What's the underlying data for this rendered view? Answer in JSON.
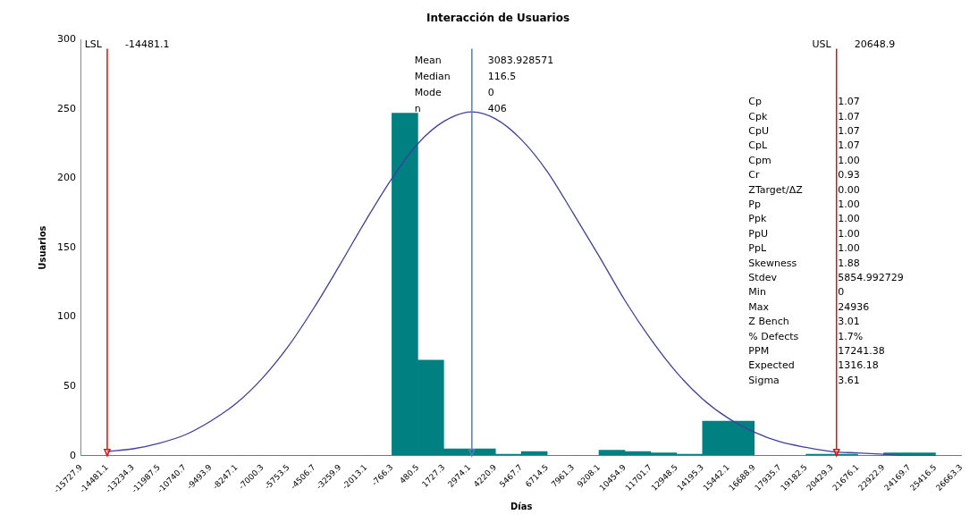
{
  "chart_data": {
    "type": "histogram",
    "title": "Interacción de Usuarios",
    "xlabel": "Días",
    "ylabel": "Usuarios",
    "bins": [
      -15727.9,
      -14481.1,
      -13234.3,
      -11987.5,
      -10740.7,
      -9493.9,
      -8247.1,
      -7000.3,
      -5753.5,
      -4506.7,
      -3259.9,
      -2013.1,
      -766.3,
      480.5,
      1727.3,
      2974.1,
      4220.9,
      5467.7,
      6714.5,
      7961.3,
      9208.1,
      10454.9,
      11701.7,
      12948.5,
      14195.3,
      15442.1,
      16688.9,
      17935.7,
      19182.5,
      20429.3,
      21676.1,
      22922.9,
      24169.7,
      25416.5,
      26663.3
    ],
    "values": [
      0,
      0,
      0,
      0,
      0,
      0,
      0,
      0,
      0,
      0,
      0,
      0,
      247,
      69,
      5,
      5,
      1,
      3,
      0,
      0,
      4,
      3,
      2,
      1,
      25,
      25,
      0,
      0,
      1,
      1,
      0,
      2,
      2,
      0
    ],
    "color": "#008080",
    "series": [
      {
        "type": "line",
        "color": "#3f3f9f",
        "x": [
          -14481.1,
          -13234.3,
          -11987.5,
          -10740.7,
          -9493.9,
          -8247.1,
          -7000.3,
          -5753.5,
          -4506.7,
          -3259.9,
          -2013.1,
          -766.3,
          480.5,
          1727.3,
          3083.9,
          4220.9,
          5467.7,
          6714.5,
          7961.3,
          9208.1,
          10454.9,
          11701.7,
          12948.5,
          14195.3,
          15442.1,
          16688.9,
          17935.7,
          19182.5,
          20429.3,
          21676.1,
          22922.9,
          24169.7,
          25416.5
        ],
        "values": [
          3,
          5,
          9,
          15,
          25,
          38,
          56,
          79,
          107,
          138,
          170,
          200,
          225,
          241,
          248,
          243,
          228,
          205,
          175,
          144,
          112,
          84,
          60,
          41,
          27,
          17,
          10,
          6,
          3,
          2,
          1,
          0,
          0
        ]
      }
    ],
    "xlim": [
      -15727.9,
      26663.3
    ],
    "xticks": [
      -15727.9,
      -14481.1,
      -13234.3,
      -11987.5,
      -10740.7,
      -9493.9,
      -8247.1,
      -7000.3,
      -5753.5,
      -4506.7,
      -3259.9,
      -2013.1,
      -766.3,
      480.5,
      1727.3,
      2974.1,
      4220.9,
      5467.7,
      6714.5,
      7961.3,
      9208.1,
      10454.9,
      11701.7,
      12948.5,
      14195.3,
      15442.1,
      16688.9,
      17935.7,
      19182.5,
      20429.3,
      21676.1,
      22922.9,
      24169.7,
      25416.5,
      26663.3
    ],
    "ylim": [
      0,
      300
    ],
    "yticks": [
      0,
      50,
      100,
      150,
      200,
      250,
      300
    ],
    "ref_lines": [
      {
        "axis": "x",
        "value": -14481.1,
        "label": "LSL",
        "color": "#ff0000"
      },
      {
        "axis": "x",
        "value": 20648.9,
        "label": "USL",
        "color": "#ff0000"
      },
      {
        "axis": "x",
        "value": 3083.928571,
        "color": "#4f81bd"
      }
    ],
    "annotations": [
      "-14481.1",
      "20648.9",
      "Mean\t3083.928571",
      "Median\t116.5",
      "Mode\t0",
      "n\t406",
      "Cp\t1.07",
      "Cpk\t1.07",
      "CpU\t1.07",
      "CpL\t1.07",
      "Cpm\t1.00",
      "Cr\t0.93",
      "ZTarget/ΔZ\t0.00",
      "Pp\t1.00",
      "Ppk\t1.00",
      "PpU\t1.00",
      "PpL\t1.00",
      "Skewness\t1.88",
      "Stdev\t5854.992729",
      "Min\t0",
      "Max\t24936",
      "Z Bench\t3.01",
      "% Defects\t1.7%",
      "PPM\t17241.38",
      "Expected\t1316.18",
      "Sigma\t3.61"
    ],
    "grid": false,
    "legend": false
  }
}
